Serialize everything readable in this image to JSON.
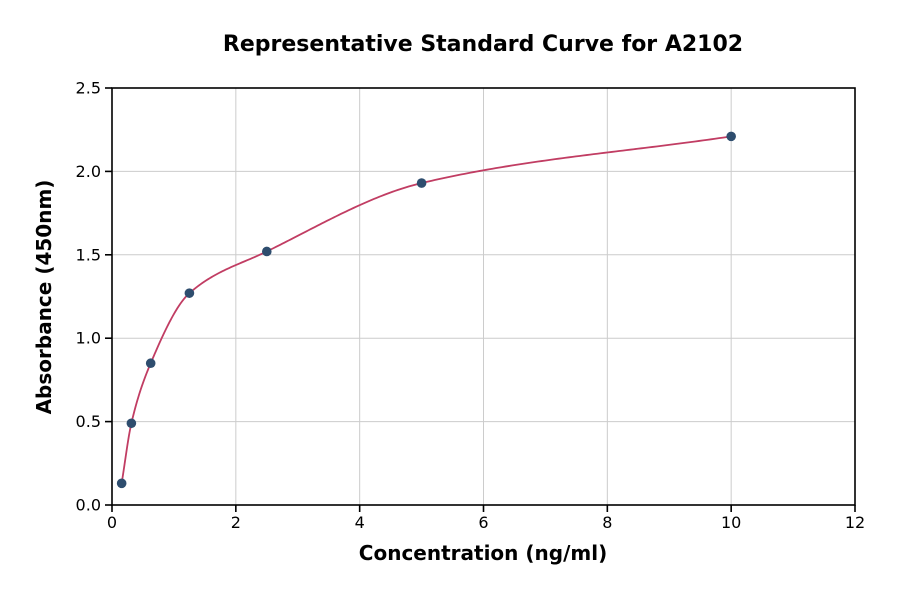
{
  "figure": {
    "background": "#ffffff"
  },
  "chart_data": {
    "type": "scatter",
    "title": "Representative Standard Curve for A2102",
    "xlabel": "Concentration (ng/ml)",
    "ylabel": "Absorbance (450nm)",
    "xlim": [
      0,
      12
    ],
    "ylim": [
      0,
      2.5
    ],
    "xticks": [
      0,
      2,
      4,
      6,
      8,
      10,
      12
    ],
    "xtick_labels": [
      "0",
      "2",
      "4",
      "6",
      "8",
      "10",
      "12"
    ],
    "yticks": [
      0,
      0.5,
      1,
      1.5,
      2,
      2.5
    ],
    "ytick_labels": [
      "0.0",
      "0.5",
      "1.0",
      "1.5",
      "2.0",
      "2.5"
    ],
    "grid": true,
    "grid_color": "#cccccc",
    "axis_color": "#000000",
    "point_color": "#2e4d6e",
    "curve_color": "#c13d63",
    "legend": "none",
    "points": [
      {
        "x": 0.156,
        "y": 0.13
      },
      {
        "x": 0.313,
        "y": 0.49
      },
      {
        "x": 0.625,
        "y": 0.85
      },
      {
        "x": 1.25,
        "y": 1.27
      },
      {
        "x": 2.5,
        "y": 1.52
      },
      {
        "x": 5,
        "y": 1.93
      },
      {
        "x": 10,
        "y": 2.21
      }
    ]
  }
}
